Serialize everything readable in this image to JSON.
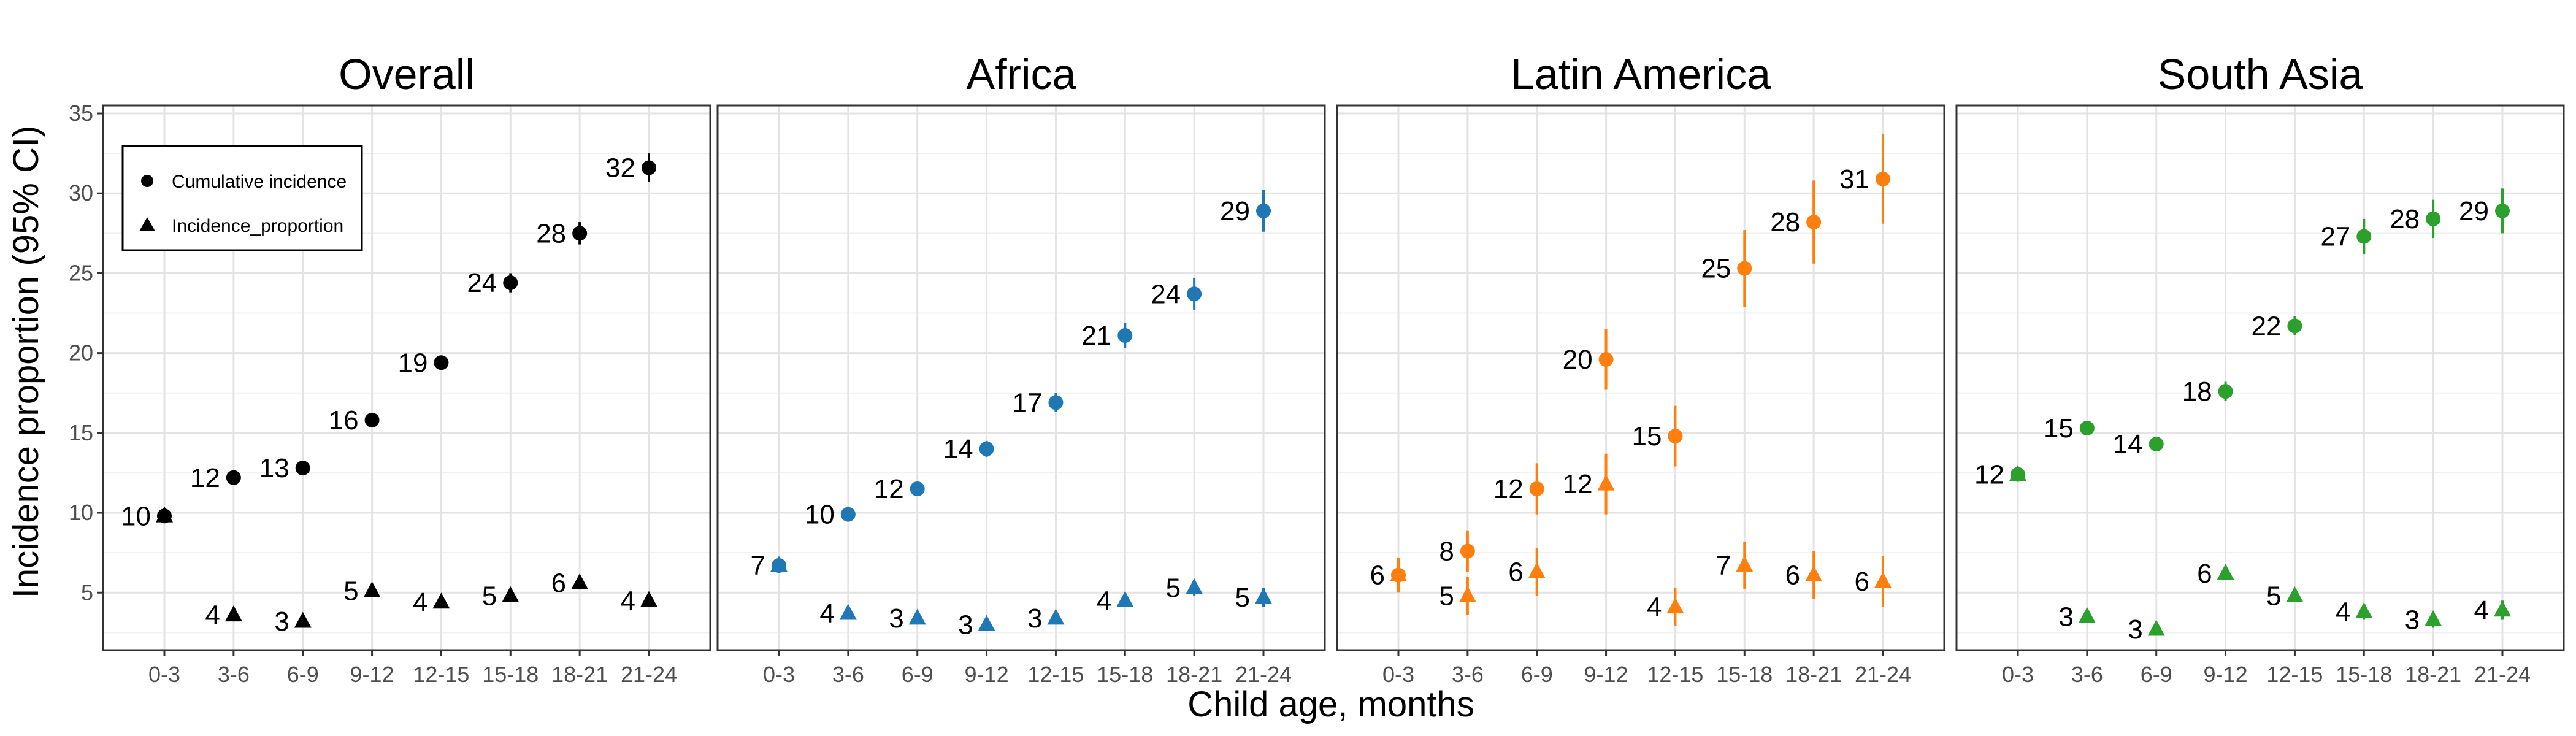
{
  "chart_data": {
    "type": "scatter",
    "xlabel": "Child age, months",
    "ylabel": "Incidence proportion (95% CI)",
    "ylim": [
      0,
      35
    ],
    "y_ticks": [
      5,
      10,
      15,
      20,
      25,
      30,
      35
    ],
    "y_tick_labels": [
      "5",
      "10",
      "15",
      "20",
      "25",
      "30",
      "35"
    ],
    "categories": [
      "0-3",
      "3-6",
      "6-9",
      "9-12",
      "12-15",
      "15-18",
      "18-21",
      "21-24"
    ],
    "grid": true,
    "legend": {
      "placement": "top-left of first panel",
      "entries": [
        {
          "label": "Cumulative incidence",
          "marker": "circle"
        },
        {
          "label": "Incidence_proportion",
          "marker": "triangle"
        }
      ]
    },
    "panels": [
      {
        "title": "Overall",
        "color": "#000000",
        "series": [
          {
            "name": "Cumulative incidence",
            "marker": "circle",
            "values": [
              9.8,
              12.2,
              12.8,
              15.8,
              19.4,
              24.4,
              27.5,
              31.6
            ],
            "ci_low": [
              9.5,
              11.9,
              12.5,
              15.4,
              19.0,
              23.8,
              26.8,
              30.7
            ],
            "ci_high": [
              10.1,
              12.5,
              13.1,
              16.2,
              19.8,
              25.0,
              28.2,
              32.5
            ],
            "labels": [
              "10",
              "12",
              "13",
              "16",
              "19",
              "24",
              "28",
              "32"
            ]
          },
          {
            "name": "Incidence_proportion",
            "marker": "triangle",
            "values": [
              9.8,
              3.6,
              3.2,
              5.1,
              4.4,
              4.8,
              5.6,
              4.5
            ],
            "ci_low": [
              9.5,
              3.3,
              2.9,
              4.8,
              4.1,
              4.5,
              5.2,
              4.1
            ],
            "ci_high": [
              10.1,
              3.9,
              3.5,
              5.4,
              4.7,
              5.1,
              6.0,
              4.9
            ],
            "labels": [
              "",
              "4",
              "3",
              "5",
              "4",
              "5",
              "6",
              "4"
            ]
          }
        ]
      },
      {
        "title": "Africa",
        "color": "#1f77b4",
        "series": [
          {
            "name": "Cumulative incidence",
            "marker": "circle",
            "values": [
              6.7,
              9.9,
              11.5,
              14.0,
              16.9,
              21.1,
              23.7,
              28.9
            ],
            "ci_low": [
              6.3,
              9.5,
              11.1,
              13.5,
              16.3,
              20.3,
              22.7,
              27.6
            ],
            "ci_high": [
              7.1,
              10.3,
              11.9,
              14.5,
              17.5,
              21.9,
              24.7,
              30.2
            ],
            "labels": [
              "7",
              "10",
              "12",
              "14",
              "17",
              "21",
              "24",
              "29"
            ]
          },
          {
            "name": "Incidence_proportion",
            "marker": "triangle",
            "values": [
              6.7,
              3.7,
              3.4,
              3.0,
              3.4,
              4.5,
              5.3,
              4.7
            ],
            "ci_low": [
              6.3,
              3.4,
              3.1,
              2.7,
              3.1,
              4.1,
              4.8,
              4.1
            ],
            "ci_high": [
              7.1,
              4.0,
              3.7,
              3.3,
              3.7,
              4.9,
              5.8,
              5.3
            ],
            "labels": [
              "",
              "4",
              "3",
              "3",
              "3",
              "4",
              "5",
              "5"
            ]
          }
        ]
      },
      {
        "title": "Latin America",
        "color": "#ff7f0e",
        "series": [
          {
            "name": "Cumulative incidence",
            "marker": "circle",
            "values": [
              6.1,
              7.6,
              11.5,
              19.6,
              14.8,
              25.3,
              28.2,
              30.9
            ],
            "ci_low": [
              5.0,
              6.3,
              9.9,
              17.7,
              12.9,
              22.9,
              25.6,
              28.1
            ],
            "ci_high": [
              7.2,
              8.9,
              13.1,
              21.5,
              16.7,
              27.7,
              30.8,
              33.7
            ],
            "labels": [
              "6",
              "8",
              "12",
              "20",
              "15",
              "25",
              "28",
              "31"
            ]
          },
          {
            "name": "Incidence_proportion",
            "marker": "triangle",
            "values": [
              6.1,
              4.8,
              6.3,
              11.8,
              4.1,
              6.7,
              6.1,
              5.7
            ],
            "ci_low": [
              5.0,
              3.6,
              4.8,
              9.9,
              2.9,
              5.2,
              4.6,
              4.1
            ],
            "ci_high": [
              7.2,
              6.0,
              7.8,
              13.7,
              5.3,
              8.2,
              7.6,
              7.3
            ],
            "labels": [
              "",
              "5",
              "6",
              "12",
              "4",
              "7",
              "6",
              "6"
            ]
          }
        ]
      },
      {
        "title": "South Asia",
        "color": "#2ca02c",
        "series": [
          {
            "name": "Cumulative incidence",
            "marker": "circle",
            "values": [
              12.4,
              15.3,
              14.3,
              17.6,
              21.7,
              27.3,
              28.4,
              28.9
            ],
            "ci_low": [
              12.1,
              14.9,
              13.9,
              17.0,
              21.1,
              26.2,
              27.2,
              27.5
            ],
            "ci_high": [
              12.7,
              15.7,
              14.7,
              18.2,
              22.3,
              28.4,
              29.6,
              30.3
            ],
            "labels": [
              "12",
              "15",
              "14",
              "18",
              "22",
              "27",
              "28",
              "29"
            ]
          },
          {
            "name": "Incidence_proportion",
            "marker": "triangle",
            "values": [
              12.4,
              3.5,
              2.7,
              6.2,
              4.8,
              3.8,
              3.3,
              3.9
            ],
            "ci_low": [
              12.1,
              3.2,
              2.4,
              5.8,
              4.4,
              3.3,
              2.8,
              3.3
            ],
            "ci_high": [
              12.7,
              3.8,
              3.0,
              6.6,
              5.2,
              4.3,
              3.8,
              4.5
            ],
            "labels": [
              "",
              "3",
              "3",
              "6",
              "5",
              "4",
              "3",
              "4"
            ]
          }
        ]
      }
    ]
  }
}
